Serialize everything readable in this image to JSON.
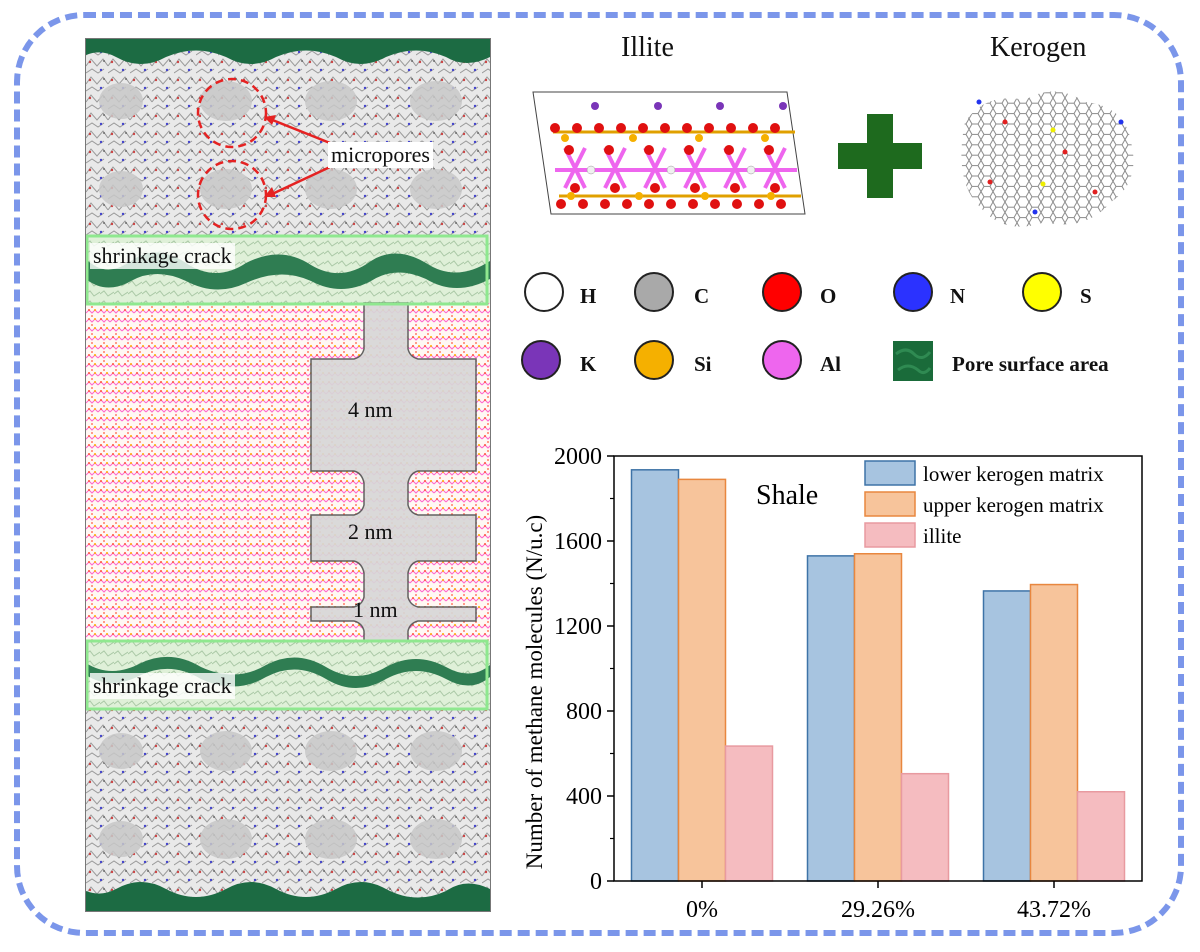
{
  "simulation": {
    "label_micropores": "micropores",
    "label_crack_upper": "shrinkage crack",
    "label_crack_lower": "shrinkage crack",
    "label_pore_4": "4 nm",
    "label_pore_2": "2 nm",
    "label_pore_1": "1 nm"
  },
  "structures": {
    "illite_title": "Illite",
    "kerogen_title": "Kerogen"
  },
  "atom_legend": [
    {
      "symbol": "H",
      "color": "#ffffff"
    },
    {
      "symbol": "C",
      "color": "#a9a9a9"
    },
    {
      "symbol": "O",
      "color": "#ff0000"
    },
    {
      "symbol": "N",
      "color": "#2b32ff"
    },
    {
      "symbol": "S",
      "color": "#ffff00"
    },
    {
      "symbol": "K",
      "color": "#7a35b8"
    },
    {
      "symbol": "Si",
      "color": "#f5b000"
    },
    {
      "symbol": "Al",
      "color": "#ee66ee"
    },
    {
      "symbol": "Pore surface area",
      "color": "#1a6b3a"
    }
  ],
  "chart_data": {
    "type": "bar",
    "annotation": "Shale",
    "categories": [
      "0%",
      "29.26%",
      "43.72%"
    ],
    "series": [
      {
        "name": "lower kerogen matrix",
        "values": [
          1935,
          1530,
          1365
        ],
        "fill": "#a7c4e0",
        "stroke": "#3e73a7"
      },
      {
        "name": "upper kerogen matrix",
        "values": [
          1890,
          1540,
          1395
        ],
        "fill": "#f7c49b",
        "stroke": "#e8873f"
      },
      {
        "name": "illite",
        "values": [
          635,
          505,
          420
        ],
        "fill": "#f5bcc0",
        "stroke": "#e89aa0"
      }
    ],
    "ylabel": "Number of methane molecules (N/u.c)",
    "xlabel": "",
    "ylim": [
      0,
      2000
    ],
    "yticks": [
      0,
      400,
      800,
      1200,
      1600,
      2000
    ],
    "legend_position": "top-right"
  }
}
